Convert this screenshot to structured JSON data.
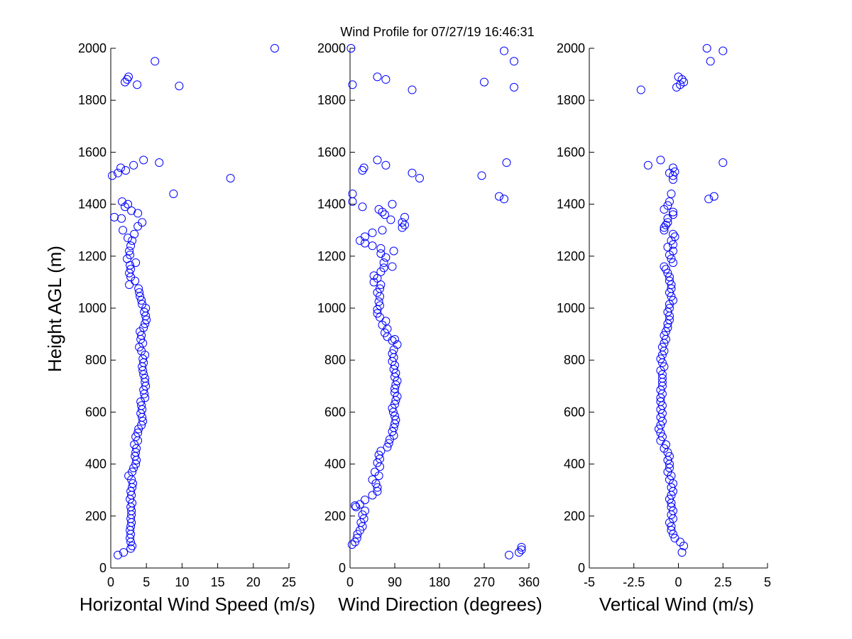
{
  "title": "Wind Profile for  07/27/19 16:46:31",
  "ylabel": "Height AGL (m)",
  "y_ticks": [
    "0",
    "200",
    "400",
    "600",
    "800",
    "1000",
    "1200",
    "1400",
    "1600",
    "1800",
    "2000"
  ],
  "colors": {
    "marker": "#0000ff",
    "axis": "#000000",
    "background": "#ffffff"
  },
  "chart_data": [
    {
      "type": "scatter",
      "xlabel": "Horizontal Wind Speed (m/s)",
      "ylabel": "Height AGL (m)",
      "xlim": [
        0,
        25
      ],
      "ylim": [
        0,
        2000
      ],
      "x_tick_labels": [
        "0",
        "5",
        "10",
        "15",
        "20",
        "25"
      ],
      "x_tick_values": [
        0,
        5,
        10,
        15,
        20,
        25
      ],
      "grid": false,
      "marker": "open-circle",
      "points": [
        [
          1.0,
          50
        ],
        [
          1.8,
          60
        ],
        [
          2.8,
          75
        ],
        [
          3.0,
          85
        ],
        [
          2.8,
          100
        ],
        [
          2.7,
          115
        ],
        [
          2.8,
          130
        ],
        [
          2.7,
          145
        ],
        [
          2.8,
          160
        ],
        [
          2.9,
          175
        ],
        [
          2.8,
          190
        ],
        [
          2.9,
          205
        ],
        [
          2.9,
          220
        ],
        [
          2.8,
          235
        ],
        [
          3.0,
          250
        ],
        [
          2.7,
          265
        ],
        [
          2.9,
          280
        ],
        [
          2.8,
          295
        ],
        [
          3.0,
          310
        ],
        [
          3.1,
          325
        ],
        [
          2.9,
          340
        ],
        [
          2.5,
          355
        ],
        [
          3.0,
          370
        ],
        [
          3.2,
          385
        ],
        [
          3.5,
          400
        ],
        [
          3.6,
          415
        ],
        [
          3.4,
          430
        ],
        [
          3.5,
          445
        ],
        [
          3.6,
          460
        ],
        [
          3.3,
          475
        ],
        [
          3.8,
          490
        ],
        [
          3.5,
          505
        ],
        [
          3.8,
          520
        ],
        [
          3.9,
          535
        ],
        [
          4.3,
          550
        ],
        [
          4.5,
          565
        ],
        [
          4.4,
          580
        ],
        [
          4.2,
          595
        ],
        [
          4.4,
          610
        ],
        [
          4.3,
          625
        ],
        [
          4.2,
          640
        ],
        [
          4.8,
          655
        ],
        [
          4.7,
          670
        ],
        [
          4.6,
          685
        ],
        [
          4.9,
          700
        ],
        [
          4.8,
          715
        ],
        [
          4.8,
          730
        ],
        [
          4.6,
          745
        ],
        [
          4.5,
          760
        ],
        [
          4.4,
          775
        ],
        [
          4.6,
          790
        ],
        [
          4.5,
          805
        ],
        [
          4.8,
          820
        ],
        [
          4.3,
          835
        ],
        [
          4.0,
          850
        ],
        [
          4.5,
          865
        ],
        [
          4.2,
          880
        ],
        [
          4.3,
          895
        ],
        [
          4.1,
          910
        ],
        [
          4.6,
          925
        ],
        [
          4.8,
          940
        ],
        [
          5.0,
          955
        ],
        [
          4.9,
          970
        ],
        [
          4.7,
          985
        ],
        [
          4.9,
          1000
        ],
        [
          4.4,
          1015
        ],
        [
          4.3,
          1030
        ],
        [
          4.1,
          1045
        ],
        [
          4.0,
          1060
        ],
        [
          3.9,
          1075
        ],
        [
          2.6,
          1090
        ],
        [
          3.4,
          1105
        ],
        [
          2.8,
          1120
        ],
        [
          2.6,
          1135
        ],
        [
          2.8,
          1150
        ],
        [
          2.7,
          1165
        ],
        [
          3.5,
          1175
        ],
        [
          2.3,
          1190
        ],
        [
          2.7,
          1205
        ],
        [
          2.6,
          1220
        ],
        [
          2.8,
          1240
        ],
        [
          3.0,
          1260
        ],
        [
          2.4,
          1270
        ],
        [
          3.3,
          1285
        ],
        [
          1.7,
          1300
        ],
        [
          3.8,
          1315
        ],
        [
          4.4,
          1330
        ],
        [
          0.5,
          1350
        ],
        [
          1.5,
          1345
        ],
        [
          3.8,
          1365
        ],
        [
          2.9,
          1375
        ],
        [
          2.0,
          1390
        ],
        [
          2.4,
          1400
        ],
        [
          1.6,
          1410
        ],
        [
          8.8,
          1440
        ],
        [
          16.8,
          1500
        ],
        [
          0.2,
          1510
        ],
        [
          1.0,
          1520
        ],
        [
          2.1,
          1530
        ],
        [
          1.4,
          1540
        ],
        [
          3.2,
          1550
        ],
        [
          6.8,
          1560
        ],
        [
          4.6,
          1570
        ],
        [
          3.7,
          1860
        ],
        [
          9.6,
          1855
        ],
        [
          2.0,
          1870
        ],
        [
          2.3,
          1880
        ],
        [
          2.5,
          1890
        ],
        [
          6.2,
          1950
        ],
        [
          23.0,
          2000
        ]
      ]
    },
    {
      "type": "scatter",
      "xlabel": "Wind Direction (degrees)",
      "ylabel": "",
      "xlim": [
        0,
        360
      ],
      "ylim": [
        0,
        2000
      ],
      "x_tick_labels": [
        "0",
        "90",
        "180",
        "270",
        "360"
      ],
      "x_tick_values": [
        0,
        90,
        180,
        270,
        360
      ],
      "grid": false,
      "marker": "open-circle",
      "points": [
        [
          4,
          90
        ],
        [
          10,
          100
        ],
        [
          14,
          115
        ],
        [
          15,
          130
        ],
        [
          20,
          145
        ],
        [
          25,
          160
        ],
        [
          22,
          175
        ],
        [
          28,
          190
        ],
        [
          25,
          205
        ],
        [
          30,
          220
        ],
        [
          12,
          235
        ],
        [
          20,
          245
        ],
        [
          10,
          240
        ],
        [
          30,
          262
        ],
        [
          45,
          280
        ],
        [
          55,
          295
        ],
        [
          55,
          310
        ],
        [
          52,
          325
        ],
        [
          45,
          340
        ],
        [
          58,
          355
        ],
        [
          50,
          370
        ],
        [
          60,
          390
        ],
        [
          55,
          405
        ],
        [
          60,
          420
        ],
        [
          58,
          435
        ],
        [
          62,
          450
        ],
        [
          75,
          465
        ],
        [
          78,
          480
        ],
        [
          80,
          495
        ],
        [
          88,
          510
        ],
        [
          85,
          525
        ],
        [
          88,
          540
        ],
        [
          90,
          555
        ],
        [
          92,
          570
        ],
        [
          90,
          585
        ],
        [
          87,
          600
        ],
        [
          85,
          615
        ],
        [
          90,
          630
        ],
        [
          92,
          645
        ],
        [
          95,
          660
        ],
        [
          90,
          675
        ],
        [
          90,
          690
        ],
        [
          92,
          705
        ],
        [
          95,
          720
        ],
        [
          90,
          735
        ],
        [
          92,
          750
        ],
        [
          88,
          765
        ],
        [
          90,
          780
        ],
        [
          85,
          795
        ],
        [
          88,
          810
        ],
        [
          85,
          825
        ],
        [
          88,
          840
        ],
        [
          95,
          860
        ],
        [
          85,
          875
        ],
        [
          90,
          880
        ],
        [
          75,
          890
        ],
        [
          70,
          905
        ],
        [
          75,
          920
        ],
        [
          65,
          935
        ],
        [
          72,
          950
        ],
        [
          60,
          965
        ],
        [
          55,
          980
        ],
        [
          55,
          995
        ],
        [
          60,
          1010
        ],
        [
          58,
          1025
        ],
        [
          60,
          1045
        ],
        [
          55,
          1060
        ],
        [
          60,
          1075
        ],
        [
          62,
          1090
        ],
        [
          48,
          1100
        ],
        [
          55,
          1115
        ],
        [
          48,
          1125
        ],
        [
          62,
          1140
        ],
        [
          68,
          1155
        ],
        [
          85,
          1160
        ],
        [
          68,
          1175
        ],
        [
          72,
          1195
        ],
        [
          62,
          1210
        ],
        [
          88,
          1220
        ],
        [
          62,
          1230
        ],
        [
          45,
          1240
        ],
        [
          30,
          1250
        ],
        [
          20,
          1260
        ],
        [
          30,
          1275
        ],
        [
          45,
          1290
        ],
        [
          65,
          1300
        ],
        [
          105,
          1310
        ],
        [
          110,
          1320
        ],
        [
          105,
          1330
        ],
        [
          82,
          1340
        ],
        [
          110,
          1350
        ],
        [
          70,
          1360
        ],
        [
          65,
          1370
        ],
        [
          58,
          1380
        ],
        [
          25,
          1390
        ],
        [
          85,
          1400
        ],
        [
          5,
          1410
        ],
        [
          310,
          1420
        ],
        [
          300,
          1430
        ],
        [
          5,
          1440
        ],
        [
          140,
          1500
        ],
        [
          265,
          1510
        ],
        [
          125,
          1520
        ],
        [
          25,
          1530
        ],
        [
          28,
          1540
        ],
        [
          72,
          1550
        ],
        [
          315,
          1560
        ],
        [
          55,
          1570
        ],
        [
          125,
          1840
        ],
        [
          330,
          1850
        ],
        [
          5,
          1860
        ],
        [
          270,
          1870
        ],
        [
          72,
          1880
        ],
        [
          55,
          1890
        ],
        [
          330,
          1950
        ],
        [
          310,
          1990
        ],
        [
          2,
          2000
        ],
        [
          320,
          50
        ],
        [
          340,
          60
        ],
        [
          345,
          70
        ],
        [
          345,
          80
        ]
      ]
    },
    {
      "type": "scatter",
      "xlabel": "Vertical Wind (m/s)",
      "ylabel": "",
      "xlim": [
        -5,
        5
      ],
      "ylim": [
        0,
        2000
      ],
      "x_tick_labels": [
        "-5",
        "-2.5",
        "0",
        "2.5",
        "5"
      ],
      "x_tick_values": [
        -5,
        -2.5,
        0,
        2.5,
        5
      ],
      "grid": false,
      "marker": "open-circle",
      "points": [
        [
          0.2,
          60
        ],
        [
          0.3,
          85
        ],
        [
          0.1,
          100
        ],
        [
          -0.2,
          115
        ],
        [
          -0.3,
          130
        ],
        [
          -0.4,
          145
        ],
        [
          -0.4,
          160
        ],
        [
          -0.5,
          175
        ],
        [
          -0.3,
          190
        ],
        [
          -0.4,
          205
        ],
        [
          -0.3,
          220
        ],
        [
          -0.4,
          235
        ],
        [
          -0.4,
          250
        ],
        [
          -0.5,
          265
        ],
        [
          -0.4,
          280
        ],
        [
          -0.3,
          295
        ],
        [
          -0.4,
          310
        ],
        [
          -0.3,
          325
        ],
        [
          -0.5,
          340
        ],
        [
          -0.4,
          355
        ],
        [
          -0.6,
          370
        ],
        [
          -0.5,
          385
        ],
        [
          -0.5,
          400
        ],
        [
          -0.6,
          415
        ],
        [
          -0.5,
          430
        ],
        [
          -0.6,
          445
        ],
        [
          -0.8,
          460
        ],
        [
          -0.7,
          475
        ],
        [
          -1.0,
          490
        ],
        [
          -0.9,
          505
        ],
        [
          -1.0,
          520
        ],
        [
          -1.1,
          535
        ],
        [
          -1.0,
          550
        ],
        [
          -0.9,
          565
        ],
        [
          -1.0,
          580
        ],
        [
          -0.9,
          595
        ],
        [
          -1.0,
          610
        ],
        [
          -0.9,
          625
        ],
        [
          -1.0,
          640
        ],
        [
          -1.0,
          655
        ],
        [
          -0.9,
          670
        ],
        [
          -1.0,
          685
        ],
        [
          -0.9,
          700
        ],
        [
          -0.9,
          715
        ],
        [
          -0.9,
          730
        ],
        [
          -0.9,
          745
        ],
        [
          -1.0,
          760
        ],
        [
          -0.8,
          775
        ],
        [
          -0.9,
          790
        ],
        [
          -1.0,
          805
        ],
        [
          -0.9,
          820
        ],
        [
          -0.8,
          835
        ],
        [
          -0.9,
          850
        ],
        [
          -0.8,
          865
        ],
        [
          -0.7,
          880
        ],
        [
          -0.8,
          895
        ],
        [
          -0.7,
          910
        ],
        [
          -0.6,
          925
        ],
        [
          -0.6,
          940
        ],
        [
          -0.5,
          955
        ],
        [
          -0.5,
          970
        ],
        [
          -0.6,
          985
        ],
        [
          -0.5,
          1000
        ],
        [
          -0.5,
          1015
        ],
        [
          -0.3,
          1030
        ],
        [
          -0.4,
          1045
        ],
        [
          -0.5,
          1060
        ],
        [
          -0.4,
          1075
        ],
        [
          -0.4,
          1090
        ],
        [
          -0.5,
          1105
        ],
        [
          -0.5,
          1120
        ],
        [
          -0.6,
          1135
        ],
        [
          -0.7,
          1150
        ],
        [
          -0.8,
          1160
        ],
        [
          -0.3,
          1175
        ],
        [
          -0.4,
          1190
        ],
        [
          -0.5,
          1205
        ],
        [
          -0.3,
          1220
        ],
        [
          -0.6,
          1235
        ],
        [
          -0.3,
          1245
        ],
        [
          -0.4,
          1260
        ],
        [
          -0.2,
          1275
        ],
        [
          -0.3,
          1285
        ],
        [
          -0.8,
          1300
        ],
        [
          -0.8,
          1310
        ],
        [
          -0.7,
          1320
        ],
        [
          -0.6,
          1330
        ],
        [
          -0.6,
          1345
        ],
        [
          -0.3,
          1360
        ],
        [
          -0.3,
          1370
        ],
        [
          -0.8,
          1380
        ],
        [
          -0.6,
          1395
        ],
        [
          -0.5,
          1410
        ],
        [
          1.7,
          1420
        ],
        [
          2.0,
          1430
        ],
        [
          -0.4,
          1440
        ],
        [
          -0.3,
          1495
        ],
        [
          -0.3,
          1510
        ],
        [
          -0.5,
          1520
        ],
        [
          -0.2,
          1525
        ],
        [
          -0.3,
          1540
        ],
        [
          -1.7,
          1550
        ],
        [
          2.5,
          1560
        ],
        [
          -1.0,
          1570
        ],
        [
          -2.1,
          1840
        ],
        [
          -0.1,
          1850
        ],
        [
          0.1,
          1860
        ],
        [
          0.3,
          1870
        ],
        [
          0.2,
          1880
        ],
        [
          0.0,
          1890
        ],
        [
          1.8,
          1950
        ],
        [
          2.5,
          1990
        ],
        [
          1.6,
          2000
        ]
      ]
    }
  ]
}
